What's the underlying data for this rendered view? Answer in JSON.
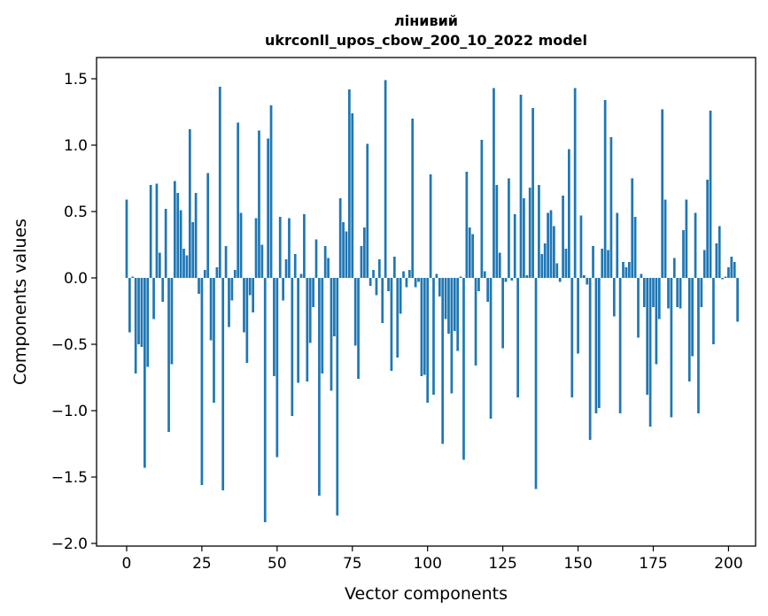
{
  "chart_data": {
    "type": "bar",
    "title": "лінивий",
    "subtitle": "ukrconll_upos_cbow_200_10_2022 model",
    "xlabel": "Vector components",
    "ylabel": "Components values",
    "xlim": [
      -10,
      209
    ],
    "ylim": [
      -2.02,
      1.66
    ],
    "x_ticks": [
      0,
      25,
      50,
      75,
      100,
      125,
      150,
      175,
      200
    ],
    "x_tick_labels": [
      "0",
      "25",
      "50",
      "75",
      "100",
      "125",
      "150",
      "175",
      "200"
    ],
    "y_ticks": [
      1.5,
      1.0,
      0.5,
      0.0,
      -0.5,
      -1.0,
      -1.5,
      -2.0
    ],
    "y_tick_labels": [
      "1.5",
      "1.0",
      "0.5",
      "0.0",
      "−0.5",
      "−1.0",
      "−1.5",
      "−2.0"
    ],
    "grid": false,
    "bar_color": "#1f77b4",
    "values": [
      0.59,
      -0.41,
      0.01,
      -0.72,
      -0.5,
      -0.52,
      -1.43,
      -0.67,
      0.7,
      -0.31,
      0.71,
      0.19,
      -0.18,
      0.52,
      -1.16,
      -0.65,
      0.73,
      0.64,
      0.51,
      0.22,
      0.17,
      1.12,
      0.42,
      0.64,
      -0.12,
      -1.56,
      0.06,
      0.79,
      -0.47,
      -0.94,
      0.08,
      1.44,
      -1.6,
      0.24,
      -0.37,
      -0.17,
      0.06,
      1.17,
      0.49,
      -0.41,
      -0.64,
      -0.13,
      -0.26,
      0.45,
      1.11,
      0.25,
      -1.84,
      1.05,
      1.3,
      -0.74,
      -1.35,
      0.46,
      -0.17,
      0.14,
      0.45,
      -1.04,
      0.18,
      -0.79,
      0.03,
      0.48,
      -0.78,
      -0.49,
      -0.22,
      0.29,
      -1.64,
      -0.72,
      0.24,
      0.15,
      -0.85,
      -0.44,
      -1.79,
      0.6,
      0.42,
      0.35,
      1.42,
      1.24,
      -0.51,
      -0.76,
      0.24,
      0.38,
      1.01,
      -0.06,
      0.06,
      -0.13,
      0.14,
      -0.34,
      1.49,
      -0.1,
      -0.7,
      0.16,
      -0.6,
      -0.27,
      0.05,
      -0.07,
      0.06,
      1.2,
      -0.07,
      -0.03,
      -0.74,
      -0.73,
      -0.94,
      0.78,
      -0.88,
      0.03,
      -0.14,
      -1.25,
      -0.31,
      -0.42,
      -0.87,
      -0.4,
      -0.55,
      0.01,
      -1.37,
      0.8,
      0.38,
      0.33,
      -0.66,
      -0.1,
      1.04,
      0.05,
      -0.18,
      -1.06,
      1.43,
      0.7,
      0.19,
      -0.53,
      -0.03,
      0.75,
      -0.02,
      0.48,
      -0.9,
      1.38,
      0.6,
      0.02,
      0.68,
      1.28,
      -1.59,
      0.7,
      0.18,
      0.26,
      0.49,
      0.51,
      0.39,
      0.11,
      -0.03,
      0.62,
      0.22,
      0.97,
      -0.9,
      1.43,
      -0.57,
      0.47,
      0.02,
      -0.05,
      -1.22,
      0.24,
      -1.02,
      -0.98,
      0.22,
      1.34,
      0.21,
      1.06,
      -0.29,
      0.49,
      -1.02,
      0.12,
      0.08,
      0.12,
      0.75,
      0.46,
      -0.45,
      0.03,
      -0.22,
      -0.88,
      -1.12,
      -0.22,
      -0.65,
      -0.31,
      1.27,
      0.59,
      -0.23,
      -1.05,
      0.15,
      -0.22,
      -0.23,
      0.36,
      0.59,
      -0.78,
      -0.59,
      0.49,
      -1.02,
      -0.22,
      0.21,
      0.74,
      1.26,
      -0.5,
      0.26,
      0.39,
      -0.01,
      0.01,
      0.08,
      0.16,
      0.12,
      -0.33
    ]
  }
}
